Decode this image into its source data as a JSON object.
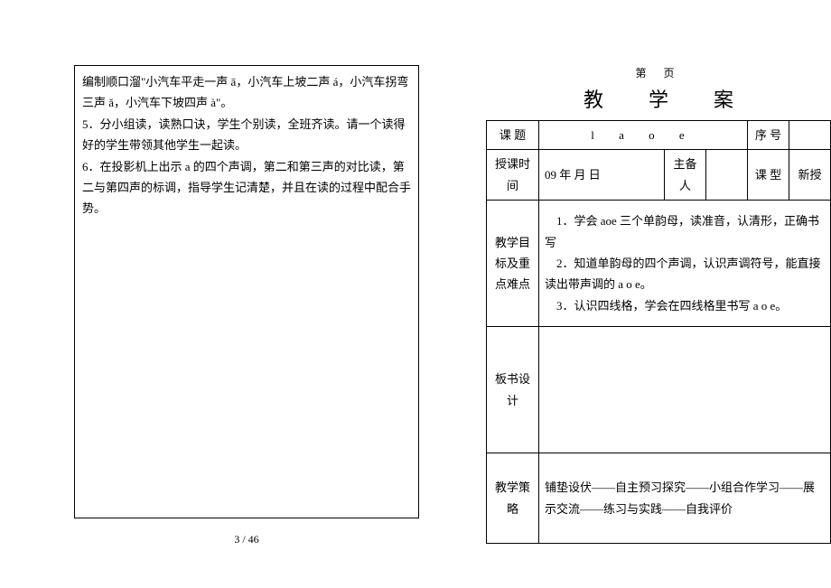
{
  "left_box": {
    "p1": " 编制顺口溜\"小汽车平走一声 ā，小汽车上坡二声 á，小汽车拐弯三声 ǎ，小汽车下坡四声 à\"。",
    "p2": "5．分小组读，读熟口诀，学生个别读，全班齐读。请一个读得好的学生带领其他学生一起读。",
    "p3": "6．在投影机上出示 a 的四个声调，第二和第三声的对比读，第二与第四声的标调，指导学生记清楚，并且在读的过程中配合手势。"
  },
  "page_number": "3  / 46",
  "right": {
    "page_header": "第   页",
    "doc_title": "教学案",
    "row1": {
      "label": "课   题",
      "value": "l  a  o  e",
      "seq_label": "序 号"
    },
    "row2": {
      "label": "授课时间",
      "value": "09 年   月   日",
      "host_label": "主备人",
      "type_label": "课 型",
      "type_value": "新授"
    },
    "goals": {
      "label1": "教学目",
      "label2": "标及重",
      "label3": "点难点",
      "content": "　1．学会 aoe 三个单韵母，读准音，认清形，正确书写\n　2．知道单韵母的四个声调，认识声调符号，能直接读出带声调的 a o e。\n　3．认识四线格，学会在四线格里书写 a o e。"
    },
    "board": {
      "label1": "板书设",
      "label2": "计"
    },
    "strategy": {
      "label1": "教学策",
      "label2": "略",
      "content": "铺垫设伏——自主预习探究——小组合作学习——展示交流——练习与实践——自我评价"
    }
  }
}
